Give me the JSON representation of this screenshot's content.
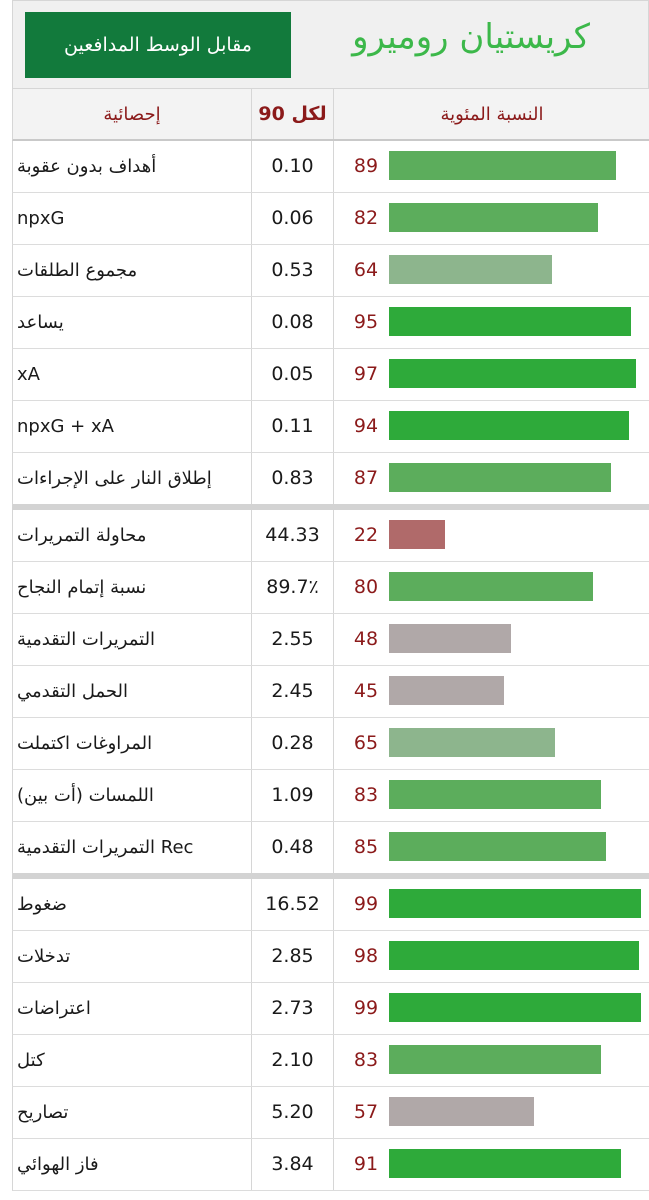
{
  "header": {
    "player_name": "كريستيان روميرو",
    "comparison_label": "مقابل الوسط المدافعين"
  },
  "columns": {
    "stat": "إحصائية",
    "per90": "لكل 90",
    "percentile": "النسبة المئوية"
  },
  "colors": {
    "high": "#2eaa3a",
    "upper": "#5cad5c",
    "mid_green": "#8db58d",
    "neutral": "#b0a8a8",
    "low": "#b06a6a"
  },
  "groups": [
    {
      "rows": [
        {
          "label": "أهداف بدون عقوبة",
          "per90": "0.10",
          "percentile": "89",
          "pct": 89
        },
        {
          "label": "npxG",
          "per90": "0.06",
          "percentile": "82",
          "pct": 82
        },
        {
          "label": "مجموع الطلقات",
          "per90": "0.53",
          "percentile": "64",
          "pct": 64
        },
        {
          "label": "يساعد",
          "per90": "0.08",
          "percentile": "95",
          "pct": 95
        },
        {
          "label": "xA",
          "per90": "0.05",
          "percentile": "97",
          "pct": 97
        },
        {
          "label": "npxG + xA",
          "per90": "0.11",
          "percentile": "94",
          "pct": 94
        },
        {
          "label": "إطلاق النار على الإجراءات",
          "per90": "0.83",
          "percentile": "87",
          "pct": 87
        }
      ]
    },
    {
      "rows": [
        {
          "label": "محاولة التمريرات",
          "per90": "44.33",
          "percentile": "22",
          "pct": 22
        },
        {
          "label": "نسبة إتمام النجاح",
          "per90": "89.7٪",
          "percentile": "80",
          "pct": 80
        },
        {
          "label": "التمريرات التقدمية",
          "per90": "2.55",
          "percentile": "48",
          "pct": 48
        },
        {
          "label": "الحمل التقدمي",
          "per90": "2.45",
          "percentile": "45",
          "pct": 45
        },
        {
          "label": "المراوغات اكتملت",
          "per90": "0.28",
          "percentile": "65",
          "pct": 65
        },
        {
          "label": "اللمسات (أت بين)",
          "per90": "1.09",
          "percentile": "83",
          "pct": 83
        },
        {
          "label": "Rec التمريرات التقدمية",
          "per90": "0.48",
          "percentile": "85",
          "pct": 85
        }
      ]
    },
    {
      "rows": [
        {
          "label": "ضغوط",
          "per90": "16.52",
          "percentile": "99",
          "pct": 99
        },
        {
          "label": "تدخلات",
          "per90": "2.85",
          "percentile": "98",
          "pct": 98
        },
        {
          "label": "اعتراضات",
          "per90": "2.73",
          "percentile": "99",
          "pct": 99
        },
        {
          "label": "كتل",
          "per90": "2.10",
          "percentile": "83",
          "pct": 83
        },
        {
          "label": "تصاريح",
          "per90": "5.20",
          "percentile": "57",
          "pct": 57
        },
        {
          "label": "فاز الهوائي",
          "per90": "3.84",
          "percentile": "91",
          "pct": 91
        }
      ]
    }
  ]
}
